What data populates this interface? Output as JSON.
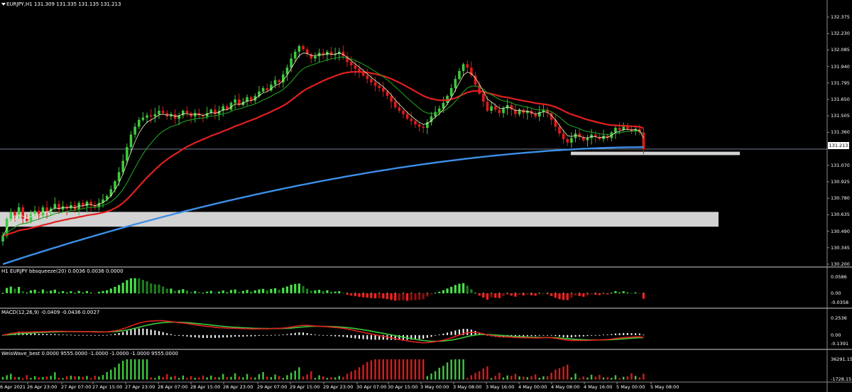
{
  "header": {
    "symbol_line": "EURJPY,H1  131.309 131.335 131.135 131.213"
  },
  "current_price_label": "131.213",
  "colors": {
    "background": "#000000",
    "bull": "#3ec93e",
    "bear": "#e01a1a",
    "ma_fast": "#f3efc8",
    "ma_mid": "#1f9e1f",
    "ma_slow": "#e02020",
    "ma_long": "#3d8fe8",
    "zone": "#d3d3d3",
    "macd_line": "#e02020",
    "signal_line": "#3ec93e",
    "histogram": "#ffffff",
    "separator": "#8a8a8a"
  },
  "panels": [
    {
      "name": "price",
      "label": "EURJPY,H1  131.309 131.335 131.135 131.213"
    },
    {
      "name": "bbsqueeze",
      "label": "H1 EURJPY bbsqueeze(20) 0.0036 0.0036 0.0000"
    },
    {
      "name": "macd",
      "label": "MACD(12,26,9) -0.0409 -0.0436 0.0027"
    },
    {
      "name": "weiswave",
      "label": "WeisWave_best 0.0000 9555.0000 -1.0000 -1.0000 -1.0000 9555.0000"
    }
  ],
  "price_axis": [
    "132.375",
    "132.230",
    "132.085",
    "131.940",
    "131.795",
    "131.650",
    "131.505",
    "131.360",
    "131.070",
    "130.925",
    "130.780",
    "130.635",
    "130.490",
    "130.345",
    "130.200"
  ],
  "bbsqueeze_axis": [
    "0.0586",
    "0.00",
    "-0.0358"
  ],
  "macd_axis": [
    "0.2536",
    "0.00",
    "-0.1391"
  ],
  "weiswave_axis": [
    "36291.15",
    "-1728.15"
  ],
  "x_axis": [
    "6 Apr 2021",
    "26 Apr 23:00",
    "27 Apr 07:00",
    "27 Apr 15:00",
    "27 Apr 23:00",
    "28 Apr 07:00",
    "28 Apr 15:00",
    "28 Apr 23:00",
    "29 Apr 07:00",
    "29 Apr 15:00",
    "29 Apr 23:00",
    "30 Apr 07:00",
    "30 Apr 15:00",
    "3 May 00:00",
    "3 May 08:00",
    "3 May 16:00",
    "4 May 00:00",
    "4 May 08:00",
    "4 May 16:00",
    "5 May 00:00",
    "5 May 08:00"
  ],
  "chart_data": {
    "type": "candlestick",
    "ylim": [
      130.2,
      132.45
    ],
    "current_price": 131.213,
    "zones": [
      {
        "from": 130.53,
        "to": 130.66
      },
      {
        "from": 131.16,
        "to": 131.19
      }
    ],
    "closes": [
      130.45,
      130.6,
      130.66,
      130.63,
      130.7,
      130.6,
      130.58,
      130.64,
      130.67,
      130.63,
      130.7,
      130.66,
      130.69,
      130.73,
      130.68,
      130.71,
      130.69,
      130.72,
      130.68,
      130.74,
      130.71,
      130.75,
      130.72,
      130.7,
      130.74,
      130.77,
      130.8,
      130.86,
      130.93,
      131.01,
      131.11,
      131.23,
      131.34,
      131.41,
      131.47,
      131.49,
      131.51,
      131.5,
      131.52,
      131.55,
      131.53,
      131.5,
      131.52,
      131.48,
      131.51,
      131.55,
      131.53,
      131.5,
      131.53,
      131.51,
      131.5,
      131.53,
      131.56,
      131.52,
      131.55,
      131.59,
      131.56,
      131.62,
      131.65,
      131.6,
      131.63,
      131.67,
      131.64,
      131.68,
      131.72,
      131.75,
      131.73,
      131.78,
      131.82,
      131.8,
      131.87,
      131.93,
      132.01,
      132.07,
      132.12,
      132.09,
      132.05,
      132.01,
      132.03,
      132.06,
      132.04,
      132.07,
      132.04,
      132.05,
      132.07,
      132.03,
      131.98,
      131.95,
      131.92,
      131.89,
      131.86,
      131.83,
      131.8,
      131.77,
      131.75,
      131.72,
      131.68,
      131.63,
      131.58,
      131.55,
      131.52,
      131.48,
      131.46,
      131.43,
      131.41,
      131.4,
      131.45,
      131.5,
      131.54,
      131.57,
      131.62,
      131.68,
      131.75,
      131.83,
      131.9,
      131.96,
      131.93,
      131.86,
      131.78,
      131.7,
      131.63,
      131.55,
      131.59,
      131.56,
      131.53,
      131.57,
      131.6,
      131.56,
      131.52,
      131.56,
      131.53,
      131.55,
      131.52,
      131.5,
      131.54,
      131.56,
      131.53,
      131.47,
      131.41,
      131.35,
      131.3,
      131.27,
      131.31,
      131.35,
      131.32,
      131.29,
      131.31,
      131.34,
      131.32,
      131.3,
      131.33,
      131.31,
      131.36,
      131.4,
      131.38,
      131.41,
      131.39,
      131.37,
      131.39,
      131.36,
      131.21
    ],
    "moving_averages": [
      "ma_fast",
      "ma_mid",
      "ma_slow",
      "ma_long"
    ],
    "bbsqueeze": {
      "ylim": [
        -0.0358,
        0.0586
      ]
    },
    "macd": {
      "ylim": [
        -0.1391,
        0.2536
      ]
    },
    "weiswave": {
      "ylim": [
        -1728.15,
        36291.15
      ]
    }
  }
}
